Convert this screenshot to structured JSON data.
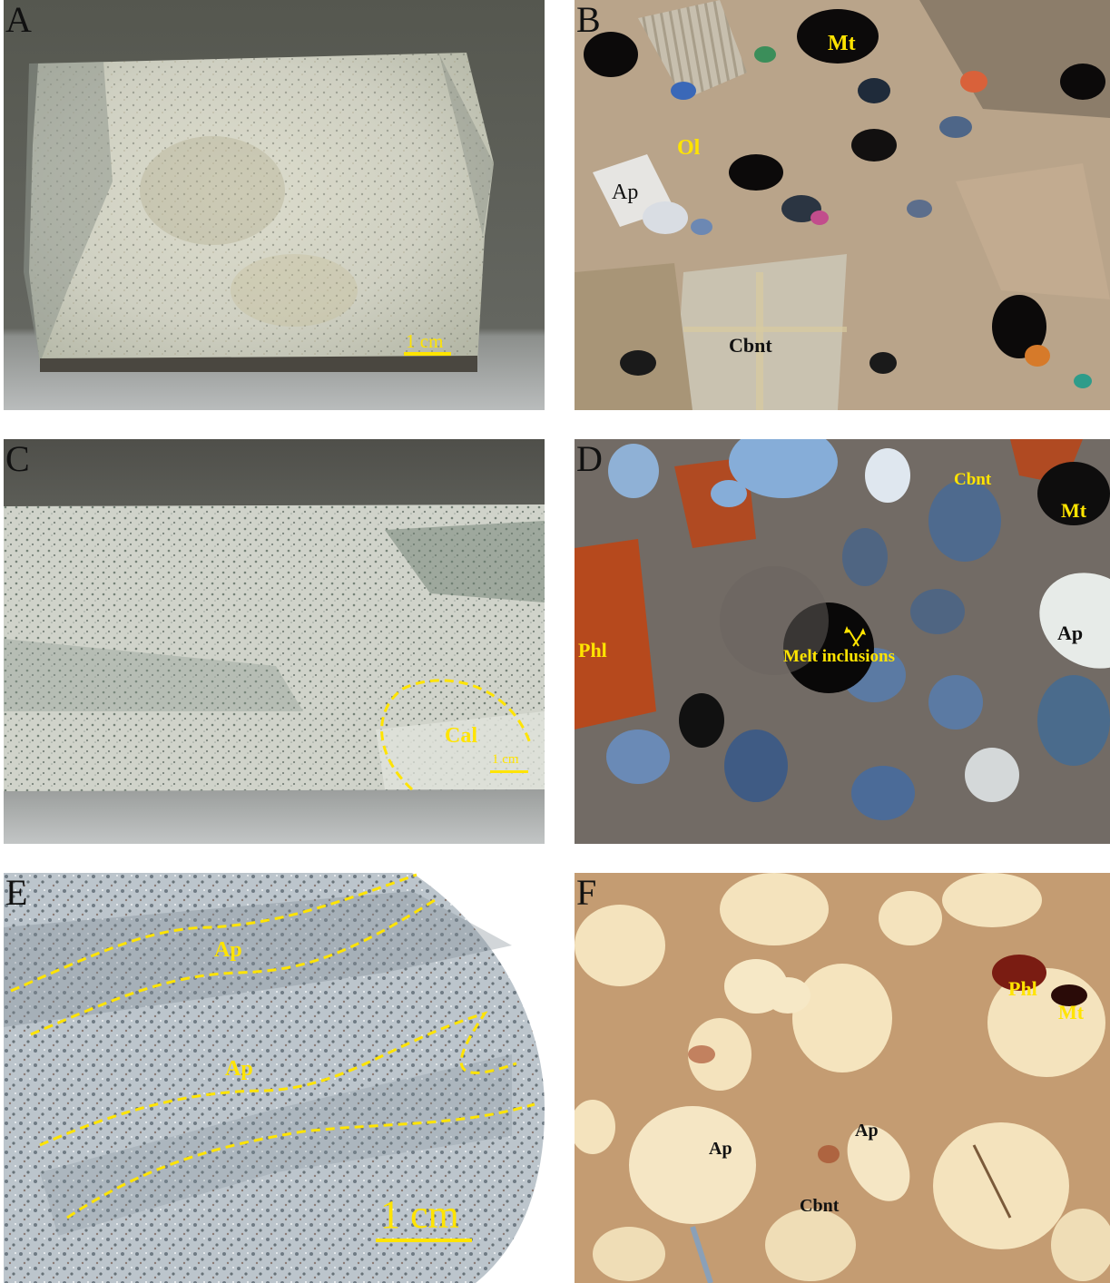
{
  "panels": {
    "a": {
      "letter": "A",
      "scale": "1 cm"
    },
    "b": {
      "letter": "B",
      "labels": {
        "mt": "Mt",
        "ol": "Ol",
        "ap": "Ap",
        "cbnt": "Cbnt"
      }
    },
    "c": {
      "letter": "C",
      "labels": {
        "cal": "Cal"
      },
      "scale": "1 cm"
    },
    "d": {
      "letter": "D",
      "labels": {
        "cbnt": "Cbnt",
        "mt": "Mt",
        "phl": "Phl",
        "melt": "Melt inclusions",
        "ap": "Ap"
      }
    },
    "e": {
      "letter": "E",
      "labels": {
        "ap1": "Ap",
        "ap2": "Ap"
      },
      "scale": "1 cm"
    },
    "f": {
      "letter": "F",
      "labels": {
        "phl": "Phl",
        "mt": "Mt",
        "ap1": "Ap",
        "ap2": "Ap",
        "cbnt": "Cbnt"
      }
    }
  },
  "colors": {
    "annotation": "#ffe400",
    "letter": "#111111"
  }
}
